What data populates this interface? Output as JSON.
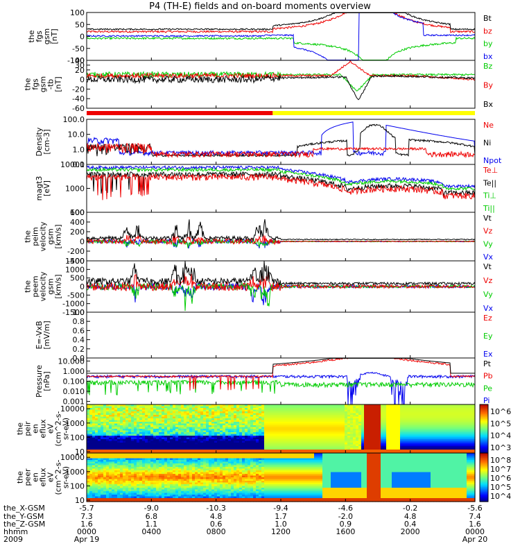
{
  "title": "P4 (TH-E) fields and on-board moments overview",
  "colors": {
    "black": "#000000",
    "red": "#ee0000",
    "green": "#00cc00",
    "blue": "#0000ee",
    "yellow": "#ffff00"
  },
  "chart_data": [
    {
      "type": "line",
      "name": "fgs-gsm",
      "ylabel": [
        "the",
        "fgs",
        "gsm",
        "[nT]"
      ],
      "ylim": [
        -100,
        100
      ],
      "yticks": [
        "100",
        "50",
        "0",
        "-50",
        "-100"
      ],
      "legend": [
        {
          "label": "Bt",
          "color": "#000000"
        },
        {
          "label": "bz",
          "color": "#ee0000"
        },
        {
          "label": "by",
          "color": "#00cc00"
        },
        {
          "label": "bx",
          "color": "#0000ee"
        }
      ]
    },
    {
      "type": "line",
      "name": "fgs-gsm-detrended",
      "ylabel": [
        "the",
        "fgs",
        "gsm",
        "-tb",
        "[nT]"
      ],
      "ylim": [
        -60,
        40
      ],
      "yticks": [
        "40",
        "30",
        "20",
        "0",
        "-20",
        "-40",
        "-60"
      ],
      "legend": [
        {
          "label": "Bz",
          "color": "#00cc00"
        },
        {
          "label": "By",
          "color": "#ee0000"
        },
        {
          "label": "Bx",
          "color": "#000000"
        }
      ]
    },
    {
      "type": "bar",
      "name": "mode-bar",
      "segments": [
        {
          "from_hour": 0.0,
          "to_hour": 11.5,
          "color": "#ee0000"
        },
        {
          "from_hour": 11.5,
          "to_hour": 24.0,
          "color": "#ffff00"
        }
      ]
    },
    {
      "type": "line",
      "name": "density",
      "scale": "log",
      "ylabel": [
        "Density",
        "[cm-3]"
      ],
      "ylim": [
        0.1,
        100.0
      ],
      "yticks": [
        "100.0",
        "10.0",
        "1.0",
        "0.1"
      ],
      "legend": [
        {
          "label": "Ne",
          "color": "#ee0000"
        },
        {
          "label": "Ni",
          "color": "#000000"
        },
        {
          "label": "Npot",
          "color": "#0000ee"
        }
      ]
    },
    {
      "type": "line",
      "name": "temperature",
      "scale": "log",
      "ylabel": [
        "magt3",
        "[eV]"
      ],
      "ylim": [
        100,
        10000
      ],
      "yticks": [
        "10000",
        "1000",
        "100"
      ],
      "legend": [
        {
          "label": "Te⊥",
          "color": "#ee0000"
        },
        {
          "label": "Te||",
          "color": "#000000"
        },
        {
          "label": "Ti⊥",
          "color": "#00cc00"
        },
        {
          "label": "Ti||",
          "color": "#00cc00"
        }
      ]
    },
    {
      "type": "line",
      "name": "ion-velocity",
      "ylabel": [
        "the",
        "peim",
        "velocity",
        "gsm",
        "[km/s]"
      ],
      "ylim": [
        -400,
        600
      ],
      "yticks": [
        "600",
        "400",
        "200",
        "0",
        "-200",
        "-400"
      ],
      "legend": [
        {
          "label": "Vt",
          "color": "#000000"
        },
        {
          "label": "Vz",
          "color": "#ee0000"
        },
        {
          "label": "Vy",
          "color": "#00cc00"
        },
        {
          "label": "Vx",
          "color": "#0000ee"
        }
      ]
    },
    {
      "type": "line",
      "name": "electron-velocity",
      "ylabel": [
        "the",
        "peem",
        "velocity",
        "gsm",
        "[km/s]"
      ],
      "ylim": [
        -1500,
        1500
      ],
      "yticks": [
        "1500",
        "1000",
        "500",
        "0",
        "-500",
        "-1000",
        "-1500"
      ],
      "legend": [
        {
          "label": "Vt",
          "color": "#000000"
        },
        {
          "label": "Vz",
          "color": "#ee0000"
        },
        {
          "label": "Vy",
          "color": "#00cc00"
        },
        {
          "label": "Vx",
          "color": "#0000ee"
        }
      ]
    },
    {
      "type": "line",
      "name": "efield",
      "ylabel": [
        "E=-VxB",
        "[mV/m]"
      ],
      "ylim": [
        0.0,
        1.0
      ],
      "yticks": [
        "1.0",
        "0.8",
        "0.6",
        "0.4",
        "0.2",
        "0.0"
      ],
      "legend": [
        {
          "label": "Ez",
          "color": "#ee0000"
        },
        {
          "label": "Ey",
          "color": "#00cc00"
        },
        {
          "label": "Ex",
          "color": "#0000ee"
        }
      ]
    },
    {
      "type": "line",
      "name": "pressure",
      "scale": "log",
      "ylabel": [
        "Pressure",
        "[nPa]"
      ],
      "ylim": [
        0.0005,
        20.0
      ],
      "yticks": [
        "10.000",
        "1.000",
        "0.100",
        "0.010",
        "0.001"
      ],
      "legend": [
        {
          "label": "Pt",
          "color": "#000000"
        },
        {
          "label": "Pb",
          "color": "#ee0000"
        },
        {
          "label": "Pe",
          "color": "#00cc00"
        },
        {
          "label": "Pi",
          "color": "#0000ee"
        }
      ]
    },
    {
      "type": "heatmap",
      "name": "ion-spectrogram",
      "scale": "log",
      "ylabel": [
        "the",
        "peir",
        "en",
        "eflux",
        "eV",
        "(cm^2-s-",
        "sr-eV)"
      ],
      "ylim": [
        8,
        20000
      ],
      "yticks": [
        "10000",
        "1000",
        "100",
        "10"
      ],
      "colorbar_ticks": [
        "10^6",
        "10^5",
        "10^4",
        "10^3"
      ]
    },
    {
      "type": "heatmap",
      "name": "electron-spectrogram",
      "scale": "log",
      "ylabel": [
        "the",
        "peer",
        "en",
        "eflux",
        "eV",
        "(cm^2-s-",
        "sr-eV)"
      ],
      "ylim": [
        8,
        20000
      ],
      "yticks": [
        "10000",
        "1000",
        "100",
        "10"
      ],
      "colorbar_ticks": [
        "10^8",
        "10^7",
        "10^6",
        "10^5",
        "10^4"
      ]
    }
  ],
  "x_axis": {
    "row_labels": [
      "the_X-GSM",
      "the_Y-GSM",
      "the_Z-GSM",
      "hhmm",
      "2009"
    ],
    "columns": [
      {
        "hour": 0,
        "values": [
          "-5.7",
          "7.3",
          "1.6",
          "0000",
          "Apr 19"
        ]
      },
      {
        "hour": 4,
        "values": [
          "-9.0",
          "6.8",
          "1.1",
          "0400",
          ""
        ]
      },
      {
        "hour": 8,
        "values": [
          "-10.3",
          "4.8",
          "0.6",
          "0800",
          ""
        ]
      },
      {
        "hour": 12,
        "values": [
          "-9.4",
          "1.7",
          "1.0",
          "1200",
          ""
        ]
      },
      {
        "hour": 16,
        "values": [
          "-4.6",
          "-2.0",
          "0.9",
          "1600",
          ""
        ]
      },
      {
        "hour": 20,
        "values": [
          "-0.2",
          "4.8",
          "0.4",
          "2000",
          ""
        ]
      },
      {
        "hour": 24,
        "values": [
          "-5.6",
          "7.4",
          "1.6",
          "0000",
          "Apr 20"
        ]
      }
    ]
  }
}
